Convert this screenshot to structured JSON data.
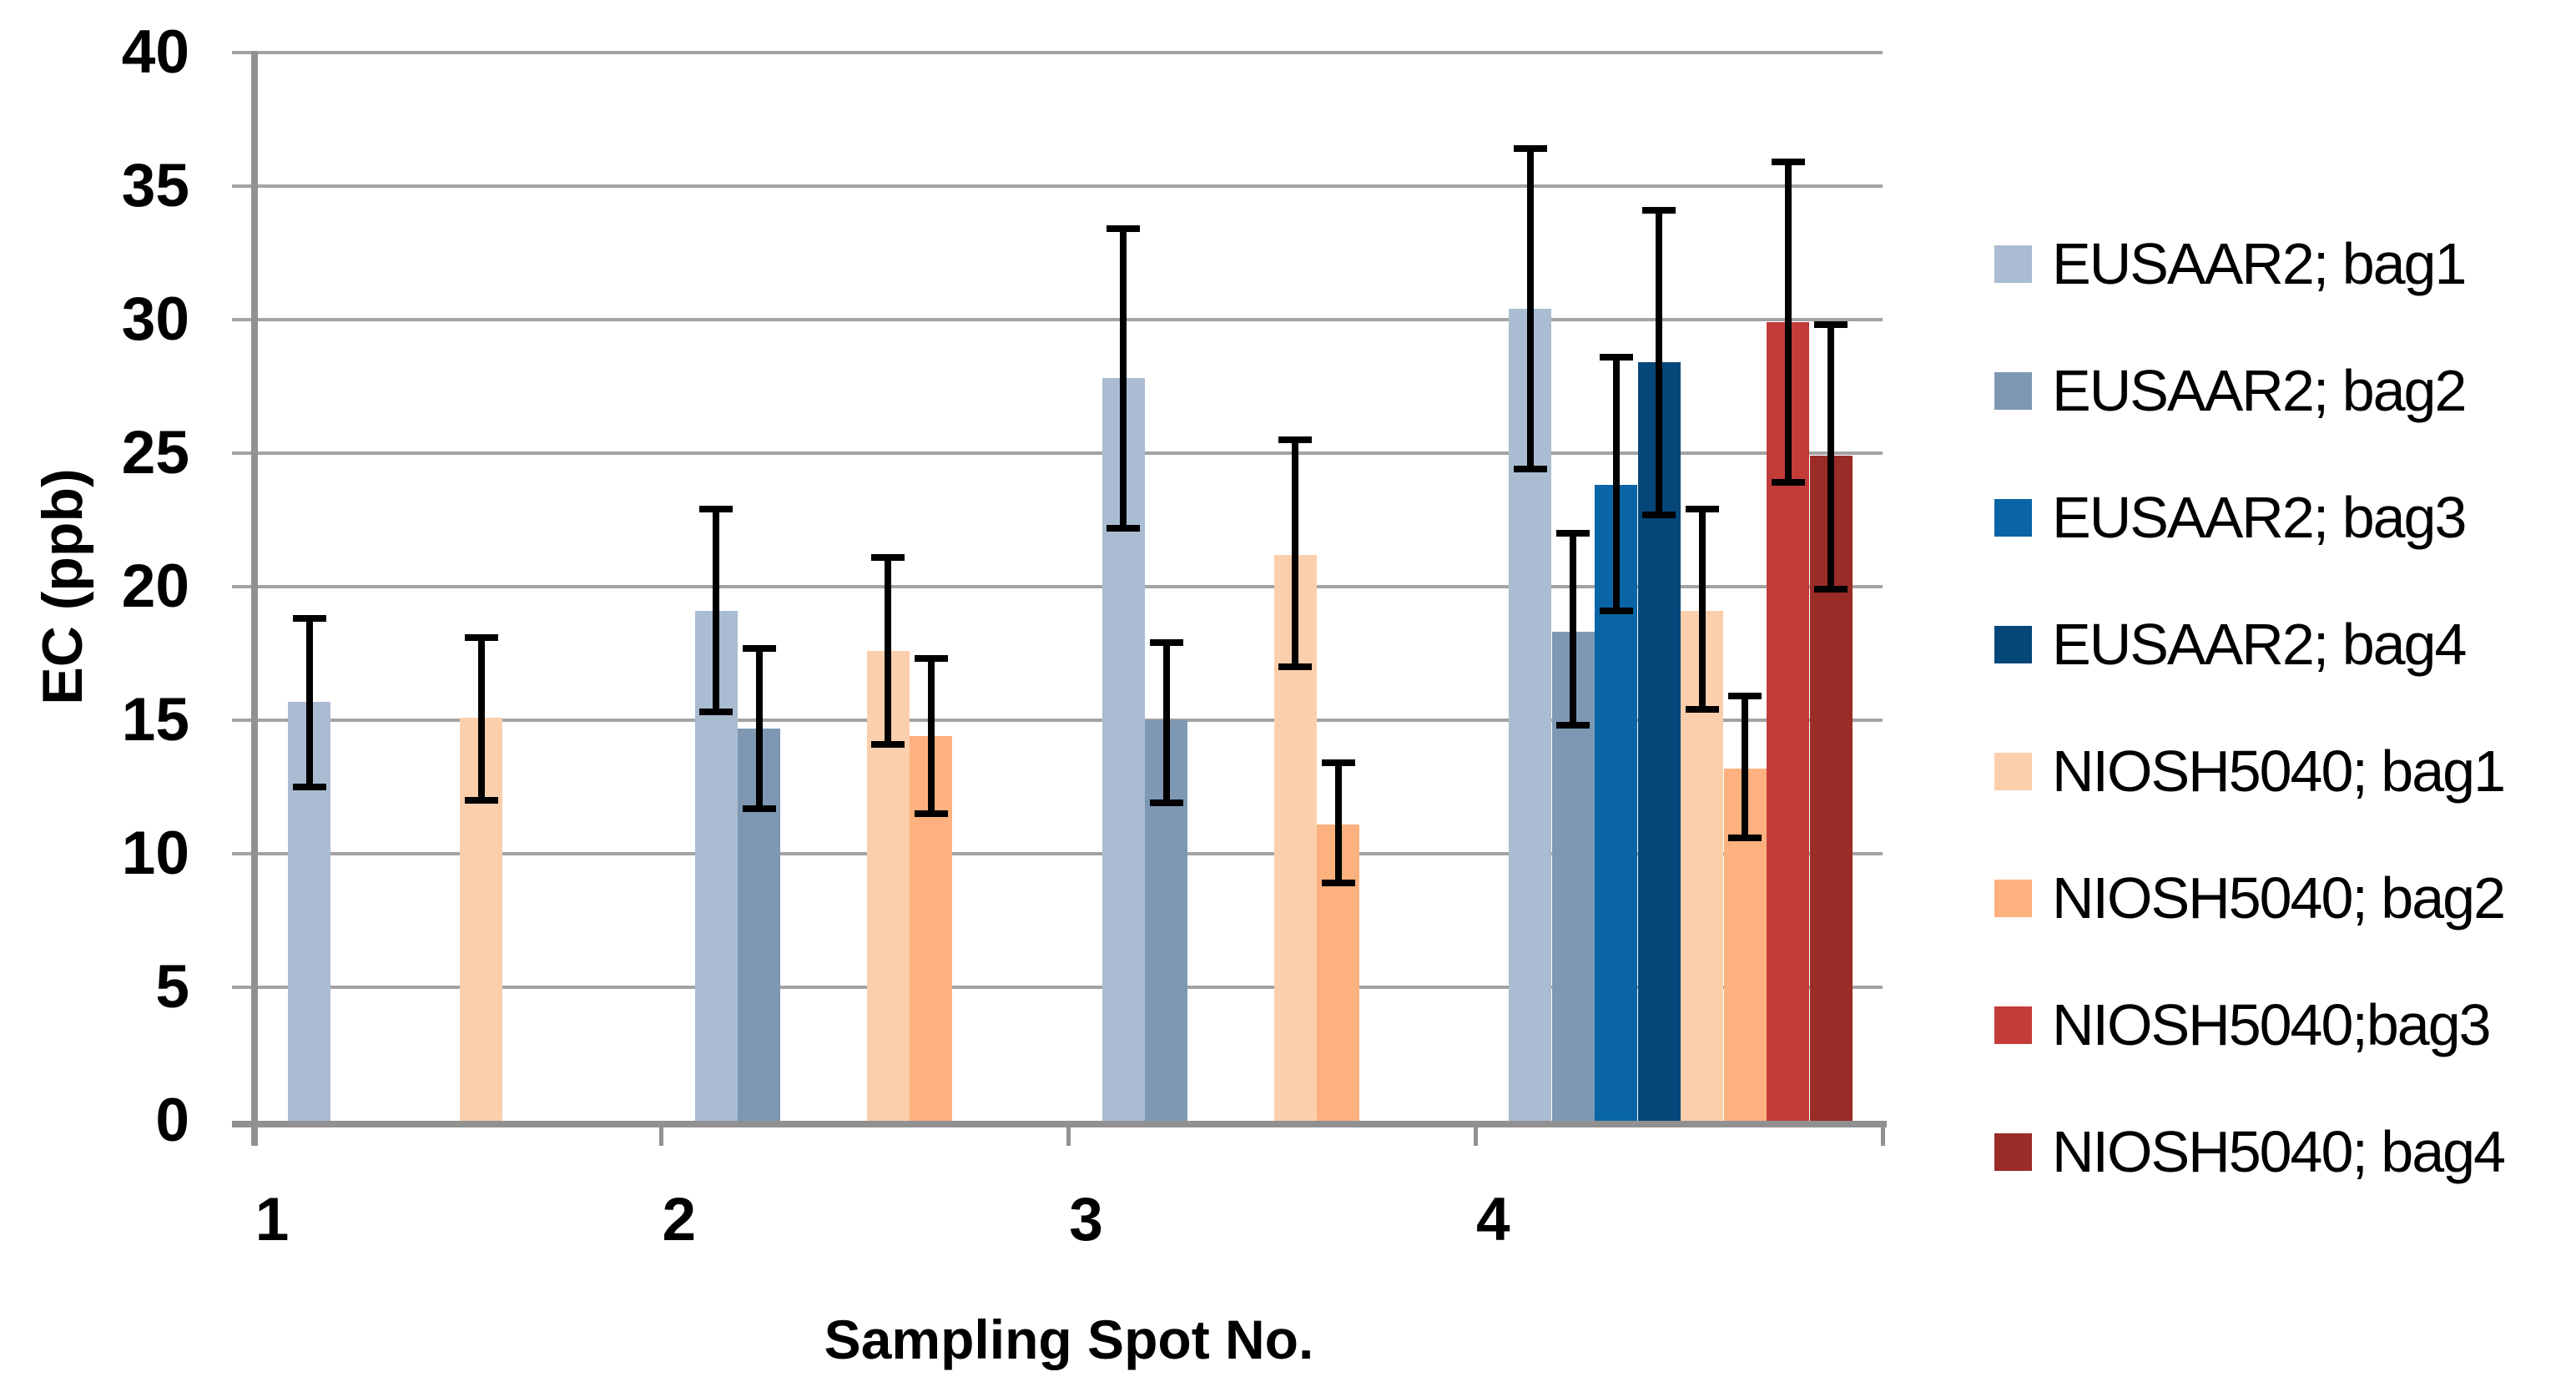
{
  "chart_data": {
    "type": "bar",
    "title": "",
    "xlabel": "Sampling Spot No.",
    "ylabel": "EC (ppb)",
    "ylim": [
      0,
      40
    ],
    "yticks": [
      0,
      5,
      10,
      15,
      20,
      25,
      30,
      35,
      40
    ],
    "grid": "horizontal-only",
    "legend_position": "right",
    "categories": [
      "1",
      "2",
      "3",
      "4"
    ],
    "series": [
      {
        "name": "EUSAAR2; bag1",
        "color": "#aabcd1",
        "values": [
          15.7,
          19.1,
          27.8,
          30.4
        ],
        "err_low": [
          12.5,
          15.3,
          22.2,
          24.4
        ],
        "err_high": [
          18.8,
          22.9,
          33.4,
          36.4
        ]
      },
      {
        "name": "EUSAAR2; bag2",
        "color": "#7e98b4",
        "values": [
          null,
          14.7,
          15.0,
          18.3
        ],
        "err_low": [
          null,
          11.7,
          11.9,
          14.8
        ],
        "err_high": [
          null,
          17.7,
          17.9,
          22.0
        ]
      },
      {
        "name": "EUSAAR2; bag3",
        "color": "#0a65a7",
        "values": [
          null,
          null,
          null,
          23.8
        ],
        "err_low": [
          null,
          null,
          null,
          19.1
        ],
        "err_high": [
          null,
          null,
          null,
          28.6
        ]
      },
      {
        "name": "EUSAAR2; bag4",
        "color": "#06477a",
        "values": [
          null,
          null,
          null,
          28.4
        ],
        "err_low": [
          null,
          null,
          null,
          22.7
        ],
        "err_high": [
          null,
          null,
          null,
          34.1
        ]
      },
      {
        "name": "NIOSH5040; bag1",
        "color": "#fccfac",
        "values": [
          15.1,
          17.6,
          21.2,
          19.1
        ],
        "err_low": [
          12.0,
          14.1,
          17.0,
          15.4
        ],
        "err_high": [
          18.1,
          21.1,
          25.5,
          22.9
        ]
      },
      {
        "name": "NIOSH5040; bag2",
        "color": "#fcb17e",
        "values": [
          null,
          14.4,
          11.1,
          13.2
        ],
        "err_low": [
          null,
          11.5,
          8.9,
          10.6
        ],
        "err_high": [
          null,
          17.3,
          13.4,
          15.9
        ]
      },
      {
        "name": "NIOSH5040;bag3",
        "color": "#c33c39",
        "values": [
          null,
          null,
          null,
          29.9
        ],
        "err_low": [
          null,
          null,
          null,
          23.9
        ],
        "err_high": [
          null,
          null,
          null,
          35.9
        ]
      },
      {
        "name": "NIOSH5040; bag4",
        "color": "#9a2c28",
        "values": [
          null,
          null,
          null,
          24.9
        ],
        "err_low": [
          null,
          null,
          null,
          19.9
        ],
        "err_high": [
          null,
          null,
          null,
          29.8
        ]
      }
    ],
    "error_bar_color": "#000000",
    "gridline_color": "#a3a3a3",
    "axis_line_color": "#919191"
  }
}
